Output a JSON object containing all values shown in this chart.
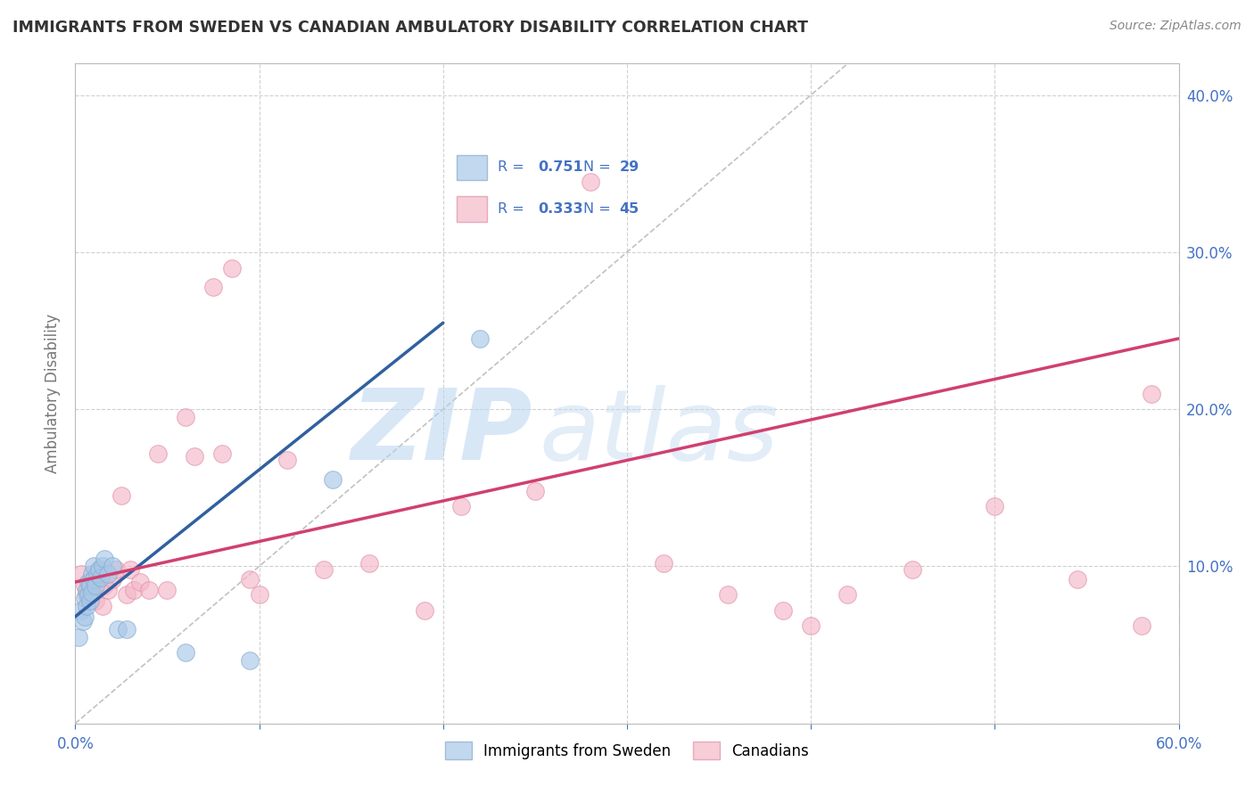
{
  "title": "IMMIGRANTS FROM SWEDEN VS CANADIAN AMBULATORY DISABILITY CORRELATION CHART",
  "source": "Source: ZipAtlas.com",
  "ylabel": "Ambulatory Disability",
  "xlim": [
    0.0,
    0.6
  ],
  "ylim": [
    0.0,
    0.42
  ],
  "xticks": [
    0.0,
    0.1,
    0.2,
    0.3,
    0.4,
    0.5,
    0.6
  ],
  "yticks": [
    0.0,
    0.1,
    0.2,
    0.3,
    0.4
  ],
  "ytick_labels_right": [
    "",
    "10.0%",
    "20.0%",
    "30.0%",
    "40.0%"
  ],
  "xtick_labels": [
    "0.0%",
    "",
    "",
    "",
    "",
    "",
    "60.0%"
  ],
  "legend_blue_r": "0.751",
  "legend_blue_n": "29",
  "legend_pink_r": "0.333",
  "legend_pink_n": "45",
  "blue_color": "#a8c8e8",
  "pink_color": "#f4b8c8",
  "blue_edge_color": "#88aacc",
  "pink_edge_color": "#e090aa",
  "blue_line_color": "#3060a0",
  "pink_line_color": "#d04070",
  "text_blue": "#4472c4",
  "blue_scatter_x": [
    0.002,
    0.003,
    0.004,
    0.005,
    0.005,
    0.006,
    0.006,
    0.007,
    0.007,
    0.008,
    0.008,
    0.009,
    0.009,
    0.01,
    0.01,
    0.011,
    0.012,
    0.013,
    0.014,
    0.015,
    0.016,
    0.018,
    0.02,
    0.023,
    0.028,
    0.06,
    0.095,
    0.14,
    0.22
  ],
  "blue_scatter_y": [
    0.055,
    0.072,
    0.065,
    0.068,
    0.08,
    0.075,
    0.085,
    0.082,
    0.09,
    0.078,
    0.088,
    0.083,
    0.095,
    0.092,
    0.1,
    0.088,
    0.095,
    0.098,
    0.093,
    0.1,
    0.105,
    0.095,
    0.1,
    0.06,
    0.06,
    0.045,
    0.04,
    0.155,
    0.245
  ],
  "pink_scatter_x": [
    0.003,
    0.005,
    0.006,
    0.008,
    0.01,
    0.011,
    0.012,
    0.013,
    0.015,
    0.016,
    0.018,
    0.02,
    0.022,
    0.025,
    0.028,
    0.03,
    0.032,
    0.035,
    0.04,
    0.045,
    0.05,
    0.06,
    0.065,
    0.075,
    0.08,
    0.085,
    0.095,
    0.1,
    0.115,
    0.135,
    0.16,
    0.19,
    0.21,
    0.25,
    0.28,
    0.32,
    0.355,
    0.385,
    0.4,
    0.42,
    0.455,
    0.5,
    0.545,
    0.58,
    0.585
  ],
  "pink_scatter_y": [
    0.095,
    0.088,
    0.082,
    0.09,
    0.085,
    0.078,
    0.092,
    0.098,
    0.075,
    0.088,
    0.085,
    0.092,
    0.098,
    0.145,
    0.082,
    0.098,
    0.085,
    0.09,
    0.085,
    0.172,
    0.085,
    0.195,
    0.17,
    0.278,
    0.172,
    0.29,
    0.092,
    0.082,
    0.168,
    0.098,
    0.102,
    0.072,
    0.138,
    0.148,
    0.345,
    0.102,
    0.082,
    0.072,
    0.062,
    0.082,
    0.098,
    0.138,
    0.092,
    0.062,
    0.21
  ],
  "blue_trend_x": [
    0.0,
    0.2
  ],
  "blue_trend_y": [
    0.068,
    0.255
  ],
  "pink_trend_x": [
    0.0,
    0.6
  ],
  "pink_trend_y": [
    0.09,
    0.245
  ],
  "ref_line_x": [
    0.0,
    0.42
  ],
  "ref_line_y": [
    0.0,
    0.42
  ],
  "watermark_zip": "ZIP",
  "watermark_atlas": "atlas",
  "background_color": "#ffffff",
  "grid_color": "#cccccc"
}
